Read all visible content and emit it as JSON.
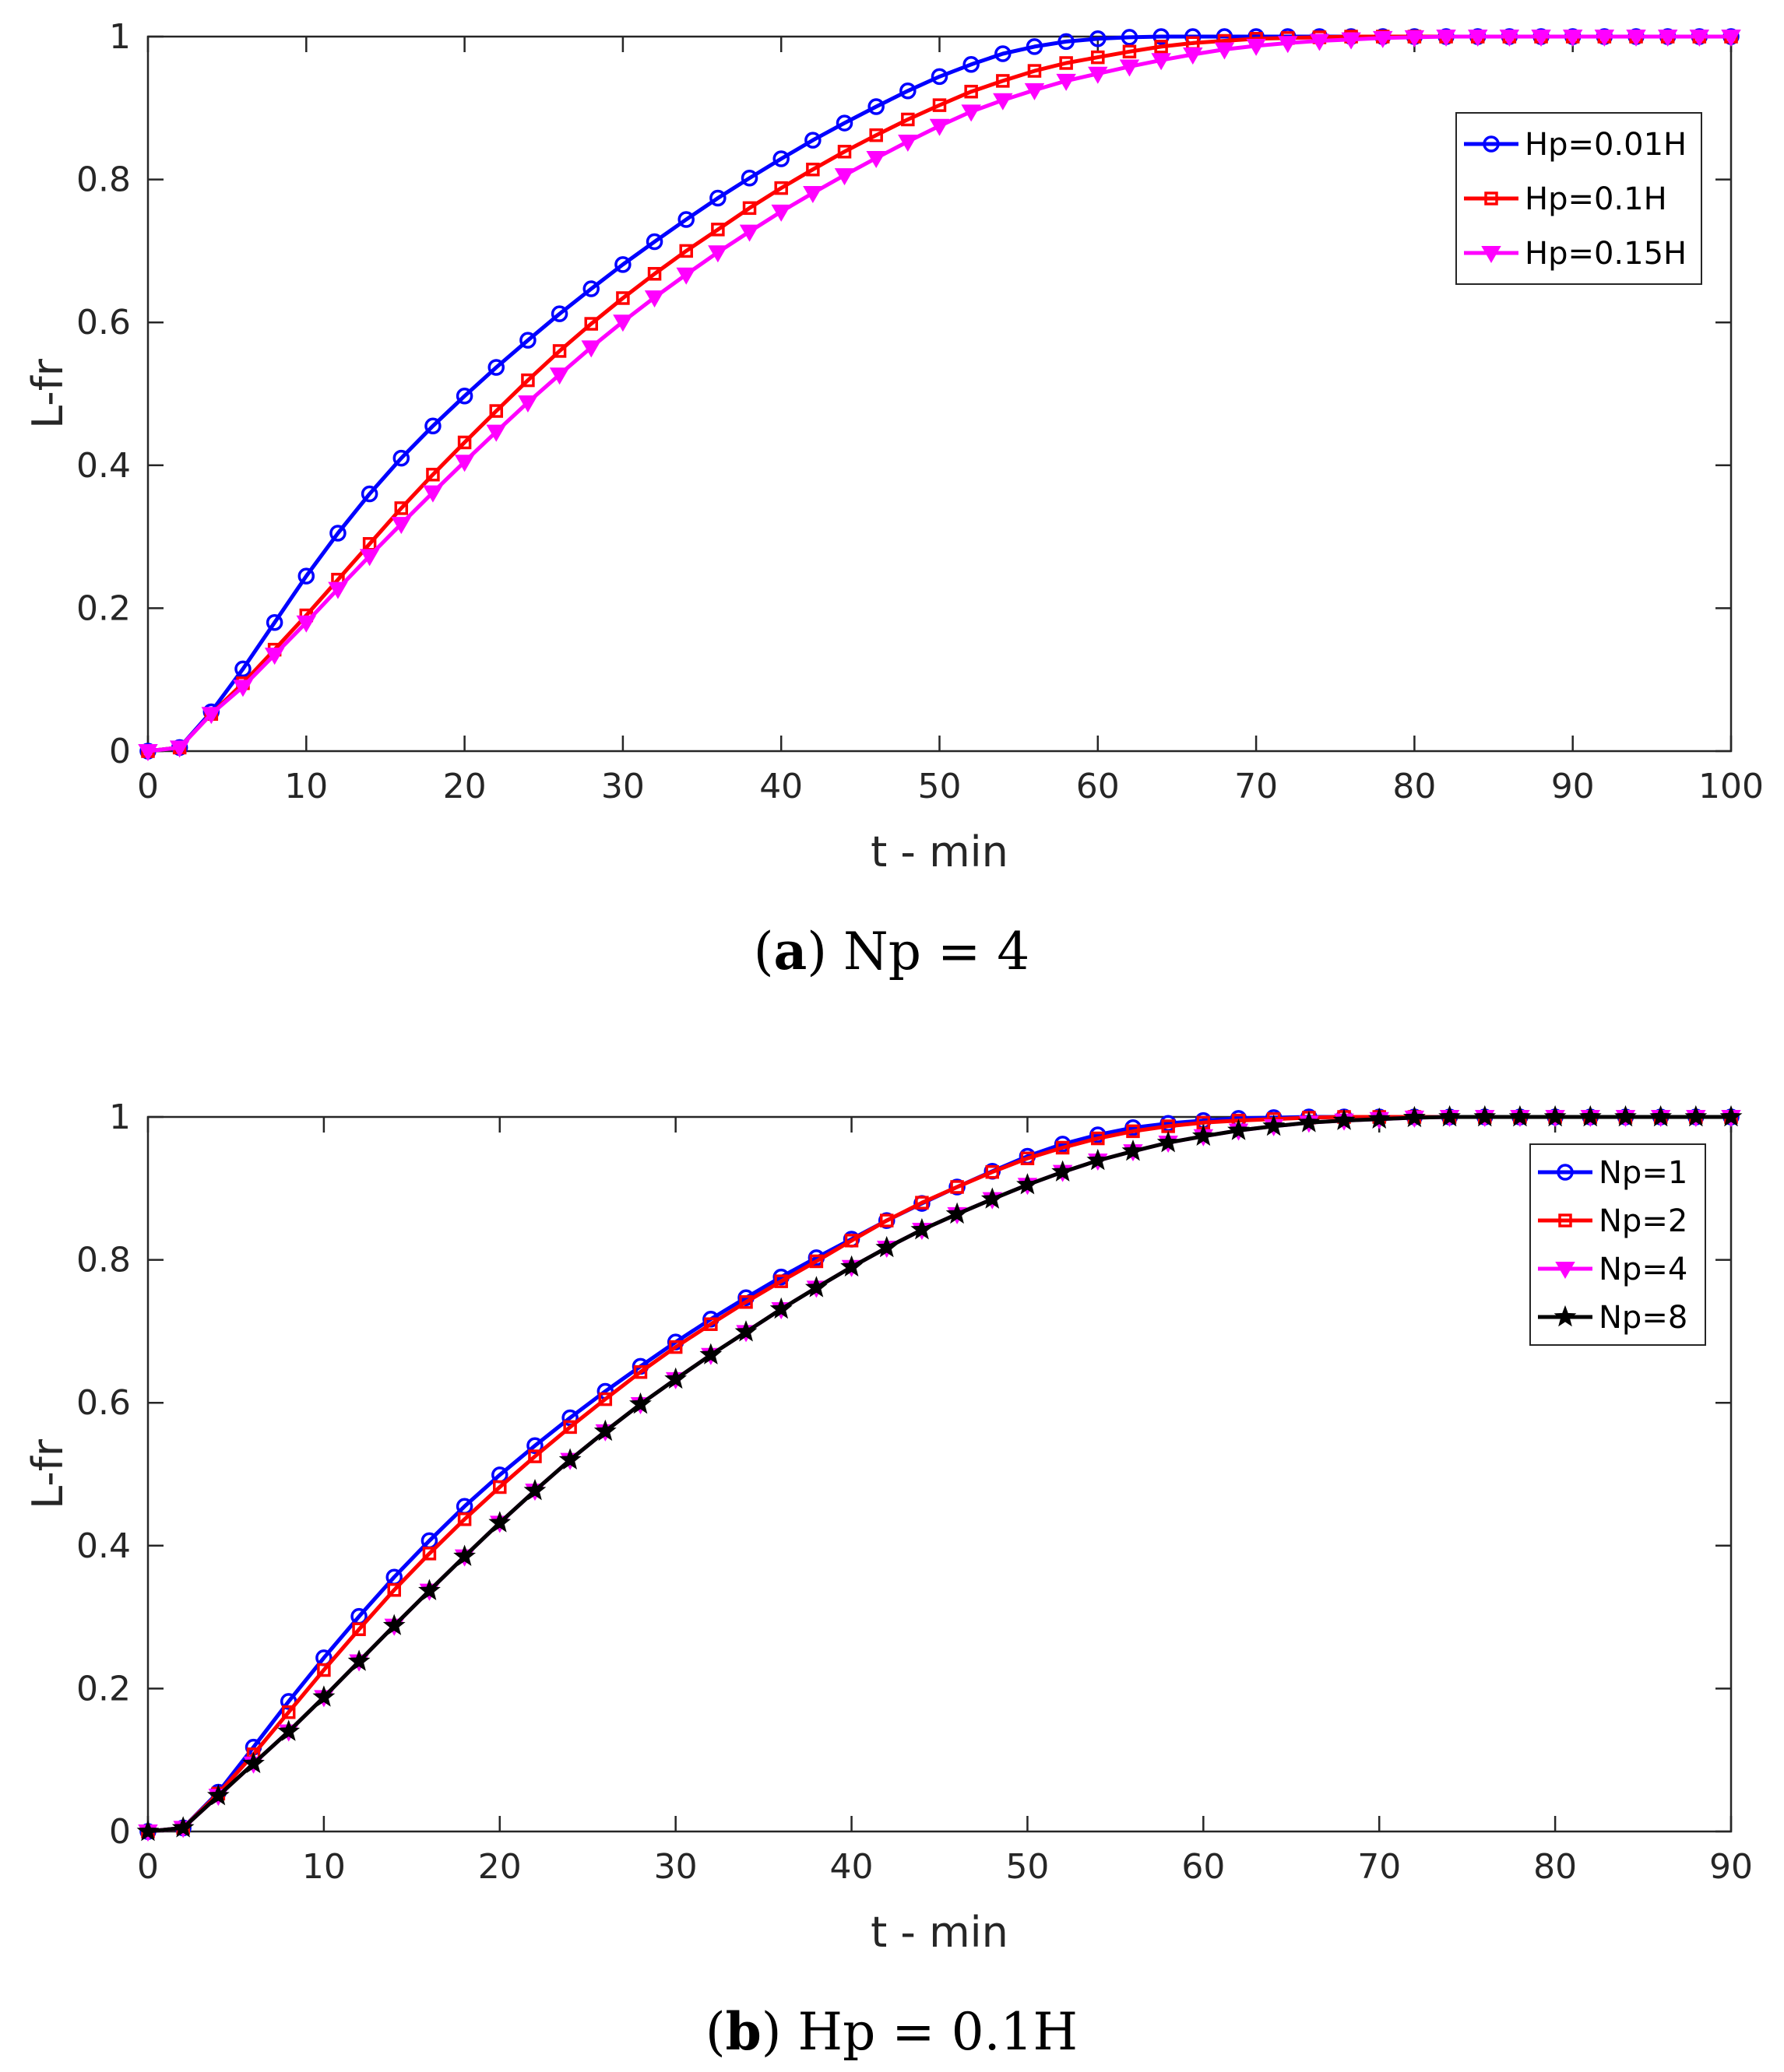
{
  "colors": {
    "blue": "#0000ff",
    "red": "#ff0000",
    "magenta": "#ff00ff",
    "black": "#000000"
  },
  "chart_data": [
    {
      "type": "line",
      "caption": {
        "letter": "a",
        "open": "(",
        "close": ")",
        "text": " Np = 4"
      },
      "xlabel": "t - min",
      "ylabel": "L-fr",
      "xlim": [
        0,
        100
      ],
      "ylim": [
        0,
        1
      ],
      "xticks": [
        "0",
        "10",
        "20",
        "30",
        "40",
        "50",
        "60",
        "70",
        "80",
        "90",
        "100"
      ],
      "yticks": [
        "0",
        "0.2",
        "0.4",
        "0.6",
        "0.8",
        "1"
      ],
      "legend_position": "top-right",
      "series": [
        {
          "name": "Hp=0.01H",
          "color": "#0000ff",
          "marker": "circle",
          "x": [
            0,
            2,
            4,
            6,
            8,
            10,
            12,
            14,
            16,
            18,
            20,
            22,
            24,
            26,
            28,
            30,
            32,
            34,
            36,
            38,
            40,
            42,
            44,
            46,
            48,
            50,
            52,
            54,
            56,
            58,
            60,
            62,
            64,
            66,
            68,
            70,
            72,
            74,
            76,
            78,
            80,
            82,
            84,
            86,
            88,
            90,
            92,
            94,
            96,
            98,
            100
          ],
          "y": [
            0,
            0.005,
            0.055,
            0.115,
            0.18,
            0.245,
            0.305,
            0.36,
            0.41,
            0.455,
            0.497,
            0.537,
            0.575,
            0.612,
            0.647,
            0.681,
            0.713,
            0.744,
            0.774,
            0.802,
            0.829,
            0.855,
            0.879,
            0.902,
            0.924,
            0.944,
            0.961,
            0.976,
            0.986,
            0.993,
            0.997,
            0.999,
            1,
            1,
            1,
            1,
            1,
            1,
            1,
            1,
            1,
            1,
            1,
            1,
            1,
            1,
            1,
            1,
            1,
            1,
            1
          ]
        },
        {
          "name": "Hp=0.1H",
          "color": "#ff0000",
          "marker": "square",
          "x": [
            0,
            2,
            4,
            6,
            8,
            10,
            12,
            14,
            16,
            18,
            20,
            22,
            24,
            26,
            28,
            30,
            32,
            34,
            36,
            38,
            40,
            42,
            44,
            46,
            48,
            50,
            52,
            54,
            56,
            58,
            60,
            62,
            64,
            66,
            68,
            70,
            72,
            74,
            76,
            78,
            80,
            82,
            84,
            86,
            88,
            90,
            92,
            94,
            96,
            98,
            100
          ],
          "y": [
            0,
            0.005,
            0.052,
            0.095,
            0.142,
            0.19,
            0.24,
            0.29,
            0.34,
            0.387,
            0.432,
            0.476,
            0.519,
            0.56,
            0.598,
            0.634,
            0.668,
            0.7,
            0.73,
            0.76,
            0.788,
            0.814,
            0.839,
            0.862,
            0.884,
            0.904,
            0.923,
            0.938,
            0.952,
            0.963,
            0.971,
            0.979,
            0.986,
            0.991,
            0.994,
            0.997,
            0.998,
            0.999,
            1,
            1,
            1,
            1,
            1,
            1,
            1,
            1,
            1,
            1,
            1,
            1,
            1
          ]
        },
        {
          "name": "Hp=0.15H",
          "color": "#ff00ff",
          "marker": "triangle-down",
          "x": [
            0,
            2,
            4,
            6,
            8,
            10,
            12,
            14,
            16,
            18,
            20,
            22,
            24,
            26,
            28,
            30,
            32,
            34,
            36,
            38,
            40,
            42,
            44,
            46,
            48,
            50,
            52,
            54,
            56,
            58,
            60,
            62,
            64,
            66,
            68,
            70,
            72,
            74,
            76,
            78,
            80,
            82,
            84,
            86,
            88,
            90,
            92,
            94,
            96,
            98,
            100
          ],
          "y": [
            0,
            0.005,
            0.052,
            0.09,
            0.135,
            0.18,
            0.227,
            0.273,
            0.318,
            0.362,
            0.405,
            0.447,
            0.488,
            0.527,
            0.565,
            0.601,
            0.635,
            0.667,
            0.698,
            0.727,
            0.755,
            0.781,
            0.806,
            0.83,
            0.853,
            0.875,
            0.895,
            0.911,
            0.925,
            0.938,
            0.948,
            0.958,
            0.967,
            0.975,
            0.982,
            0.987,
            0.991,
            0.994,
            0.996,
            0.998,
            0.999,
            1,
            1,
            1,
            1,
            1,
            1,
            1,
            1,
            1,
            1
          ]
        }
      ]
    },
    {
      "type": "line",
      "caption": {
        "letter": "b",
        "open": "(",
        "close": ")",
        "text": " Hp = 0.1H"
      },
      "xlabel": "t - min",
      "ylabel": "L-fr",
      "xlim": [
        0,
        90
      ],
      "ylim": [
        0,
        1
      ],
      "xticks": [
        "0",
        "10",
        "20",
        "30",
        "40",
        "50",
        "60",
        "70",
        "80",
        "90"
      ],
      "yticks": [
        "0",
        "0.2",
        "0.4",
        "0.6",
        "0.8",
        "1"
      ],
      "legend_position": "top-right",
      "series": [
        {
          "name": "Np=1",
          "color": "#0000ff",
          "marker": "circle",
          "x": [
            0,
            2,
            4,
            6,
            8,
            10,
            12,
            14,
            16,
            18,
            20,
            22,
            24,
            26,
            28,
            30,
            32,
            34,
            36,
            38,
            40,
            42,
            44,
            46,
            48,
            50,
            52,
            54,
            56,
            58,
            60,
            62,
            64,
            66,
            68,
            70,
            72,
            74,
            76,
            78,
            80,
            82,
            84,
            86,
            88,
            90
          ],
          "y": [
            0,
            0.005,
            0.055,
            0.118,
            0.182,
            0.243,
            0.301,
            0.356,
            0.407,
            0.455,
            0.499,
            0.54,
            0.579,
            0.616,
            0.651,
            0.685,
            0.717,
            0.747,
            0.776,
            0.803,
            0.829,
            0.855,
            0.879,
            0.902,
            0.924,
            0.945,
            0.962,
            0.975,
            0.985,
            0.991,
            0.995,
            0.998,
            0.999,
            1,
            1,
            1,
            1,
            1,
            1,
            1,
            1,
            1,
            1,
            1,
            1,
            1
          ]
        },
        {
          "name": "Np=2",
          "color": "#ff0000",
          "marker": "square",
          "x": [
            0,
            2,
            4,
            6,
            8,
            10,
            12,
            14,
            16,
            18,
            20,
            22,
            24,
            26,
            28,
            30,
            32,
            34,
            36,
            38,
            40,
            42,
            44,
            46,
            48,
            50,
            52,
            54,
            56,
            58,
            60,
            62,
            64,
            66,
            68,
            70,
            72,
            74,
            76,
            78,
            80,
            82,
            84,
            86,
            88,
            90
          ],
          "y": [
            0,
            0.005,
            0.053,
            0.108,
            0.167,
            0.226,
            0.283,
            0.338,
            0.389,
            0.437,
            0.482,
            0.525,
            0.566,
            0.605,
            0.643,
            0.678,
            0.71,
            0.741,
            0.77,
            0.798,
            0.827,
            0.855,
            0.88,
            0.902,
            0.923,
            0.942,
            0.957,
            0.97,
            0.98,
            0.987,
            0.992,
            0.995,
            0.997,
            0.999,
            1,
            1,
            1,
            1,
            1,
            1,
            1,
            1,
            1,
            1,
            1,
            1
          ]
        },
        {
          "name": "Np=4",
          "color": "#ff00ff",
          "marker": "triangle-down",
          "x": [
            0,
            2,
            4,
            6,
            8,
            10,
            12,
            14,
            16,
            18,
            20,
            22,
            24,
            26,
            28,
            30,
            32,
            34,
            36,
            38,
            40,
            42,
            44,
            46,
            48,
            50,
            52,
            54,
            56,
            58,
            60,
            62,
            64,
            66,
            68,
            70,
            72,
            74,
            76,
            78,
            80,
            82,
            84,
            86,
            88,
            90
          ],
          "y": [
            0,
            0.005,
            0.05,
            0.095,
            0.14,
            0.188,
            0.238,
            0.288,
            0.337,
            0.385,
            0.432,
            0.477,
            0.52,
            0.56,
            0.598,
            0.633,
            0.667,
            0.699,
            0.731,
            0.761,
            0.79,
            0.817,
            0.842,
            0.864,
            0.885,
            0.905,
            0.923,
            0.939,
            0.952,
            0.964,
            0.973,
            0.981,
            0.987,
            0.992,
            0.995,
            0.997,
            0.999,
            1,
            1,
            1,
            1,
            1,
            1,
            1,
            1,
            1
          ]
        },
        {
          "name": "Np=8",
          "color": "#000000",
          "marker": "star",
          "x": [
            0,
            2,
            4,
            6,
            8,
            10,
            12,
            14,
            16,
            18,
            20,
            22,
            24,
            26,
            28,
            30,
            32,
            34,
            36,
            38,
            40,
            42,
            44,
            46,
            48,
            50,
            52,
            54,
            56,
            58,
            60,
            62,
            64,
            66,
            68,
            70,
            72,
            74,
            76,
            78,
            80,
            82,
            84,
            86,
            88,
            90
          ],
          "y": [
            0,
            0.005,
            0.05,
            0.095,
            0.14,
            0.188,
            0.238,
            0.288,
            0.337,
            0.385,
            0.432,
            0.477,
            0.52,
            0.56,
            0.598,
            0.633,
            0.667,
            0.699,
            0.731,
            0.761,
            0.79,
            0.817,
            0.842,
            0.864,
            0.885,
            0.905,
            0.923,
            0.939,
            0.952,
            0.964,
            0.973,
            0.981,
            0.987,
            0.992,
            0.995,
            0.997,
            0.999,
            1,
            1,
            1,
            1,
            1,
            1,
            1,
            1,
            1
          ]
        }
      ]
    }
  ]
}
